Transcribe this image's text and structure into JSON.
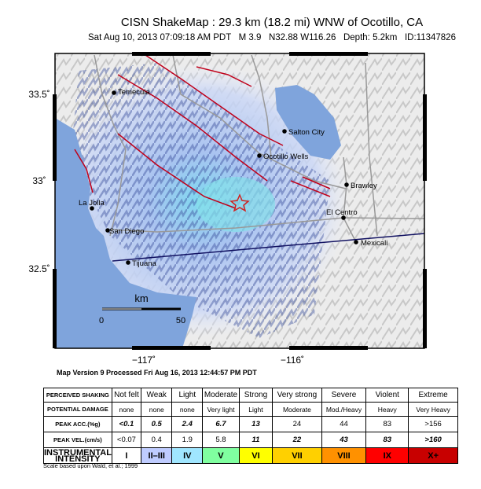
{
  "header": {
    "title": "CISN ShakeMap : 29.3 km (18.2 mi) WNW of Ocotillo, CA",
    "subtitle": "Sat Aug 10, 2013 07:09:18 AM PDT   M 3.9   N32.88 W116.26   Depth: 5.2km   ID:11347826"
  },
  "map": {
    "lat_labels": [
      "33.5˚",
      "33˚",
      "32.5˚"
    ],
    "lon_labels": [
      "−117˚",
      "−116˚"
    ],
    "cities": [
      "Temecula",
      "Salton City",
      "Ocotillo Wells",
      "Brawley",
      "El Centro",
      "Mexicali",
      "La Jolla",
      "San Diego",
      "Tijuana"
    ],
    "scale": {
      "unit": "km",
      "start": "0",
      "end": "50"
    },
    "version": "Map Version 9 Processed Fri Aug 16, 2013 12:44:57 PM PDT"
  },
  "table": {
    "row_headers": [
      "PERCEIVED SHAKING",
      "POTENTIAL DAMAGE",
      "PEAK ACC.(%g)",
      "PEAK VEL.(cm/s)",
      "INSTRUMENTAL INTENSITY"
    ],
    "rows": [
      [
        "Not felt",
        "Weak",
        "Light",
        "Moderate",
        "Strong",
        "Very strong",
        "Severe",
        "Violent",
        "Extreme"
      ],
      [
        "none",
        "none",
        "none",
        "Very light",
        "Light",
        "Moderate",
        "Mod./Heavy",
        "Heavy",
        "Very Heavy"
      ],
      [
        "<0.1",
        "0.5",
        "2.4",
        "6.7",
        "13",
        "24",
        "44",
        "83",
        ">156"
      ],
      [
        "<0.07",
        "0.4",
        "1.9",
        "5.8",
        "11",
        "22",
        "43",
        "83",
        ">160"
      ],
      [
        "I",
        "II–III",
        "IV",
        "V",
        "VI",
        "VII",
        "VIII",
        "IX",
        "X+"
      ]
    ]
  },
  "footnote": "Scale based upon Wald, et al.; 1999"
}
